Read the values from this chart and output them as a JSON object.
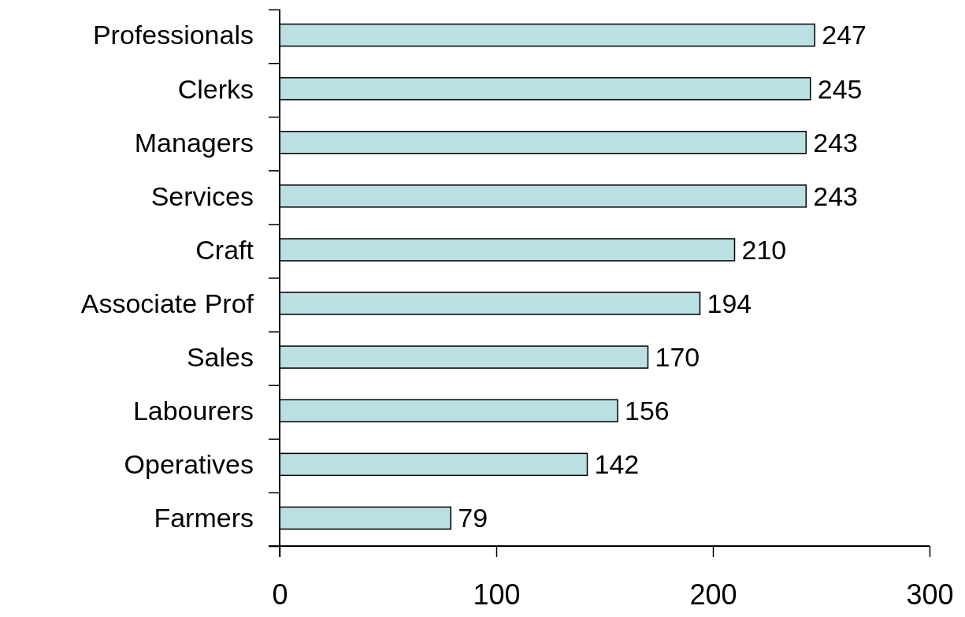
{
  "chart_data": {
    "type": "bar",
    "orientation": "horizontal",
    "categories": [
      "Professionals",
      "Clerks",
      "Managers",
      "Services",
      "Craft",
      "Associate Prof",
      "Sales",
      "Labourers",
      "Operatives",
      "Farmers"
    ],
    "values": [
      247,
      245,
      243,
      243,
      210,
      194,
      170,
      156,
      142,
      79
    ],
    "color": "#bbe0e3",
    "xlim": [
      0,
      300
    ],
    "xticks": [
      0,
      100,
      200,
      300
    ],
    "data_labels": true
  }
}
